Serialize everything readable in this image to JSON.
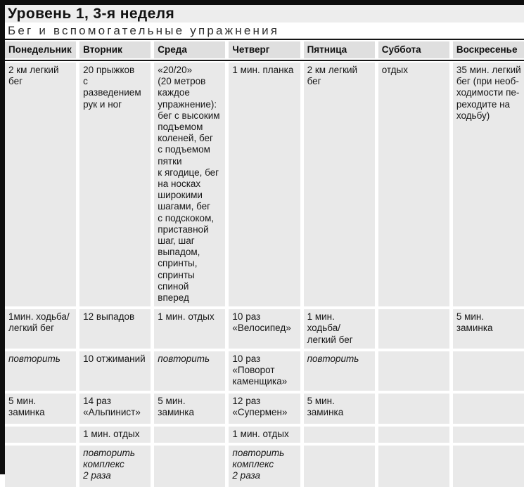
{
  "page": {
    "title": "Уровень 1, 3-я неделя",
    "subtitle": "Бег и вспомогательные упражнения"
  },
  "colors": {
    "edge_bar": "#0e0e0e",
    "title_strip_bg": "#ededed",
    "header_cell_bg": "#dfdfdf",
    "data_cell_bg": "#e9e9e9",
    "rule": "#161616"
  },
  "table": {
    "headers": [
      "Понедельник",
      "Вторник",
      "Среда",
      "Четверг",
      "Пятница",
      "Суббота",
      "Воскресенье"
    ],
    "rows": [
      {
        "cells": [
          "2 км легкий\nбег",
          "20 прыжков\nс разведением\nрук и ног",
          "«20/20»\n(20 метров\nкаждое\nупражнение):\nбег с высоким\nподъемом\nколеней, бег\nс подъемом\nпятки\nк ягодице, бег\nна носках\nширокими\nшагами, бег\nс подскоком,\nприставной\nшаг, шаг\nвыпадом,\nспринты,\nспринты\nспиной вперед",
          "1 мин. планка",
          "2 км легкий\nбег",
          "отдых",
          "35 мин. легкий\nбег (при необ-\nходимости пе-\nреходите на\nходьбу)"
        ]
      },
      {
        "cells": [
          "1мин. ходьба/\nлегкий бег",
          "12 выпадов",
          "1 мин. отдых",
          "10 раз\n«Велосипед»",
          "1 мин.\nходьба/\nлегкий бег",
          "",
          "5 мин. заминка"
        ]
      },
      {
        "cells": [
          "повторить",
          "10 отжиманий",
          "повторить",
          "10 раз\n«Поворот\nкаменщика»",
          "повторить",
          "",
          ""
        ]
      },
      {
        "cells": [
          "5 мин.\nзаминка",
          "14 раз\n«Альпинист»",
          "5 мин. заминка",
          "12 раз\n«Супермен»",
          "5 мин.\nзаминка",
          "",
          ""
        ]
      },
      {
        "cells": [
          "",
          "1 мин. отдых",
          "",
          "1 мин. отдых",
          "",
          "",
          ""
        ]
      },
      {
        "cells": [
          "",
          "повторить\nкомплекс\n2 раза",
          "",
          "повторить\nкомплекс\n2 раза",
          "",
          "",
          ""
        ]
      }
    ]
  }
}
